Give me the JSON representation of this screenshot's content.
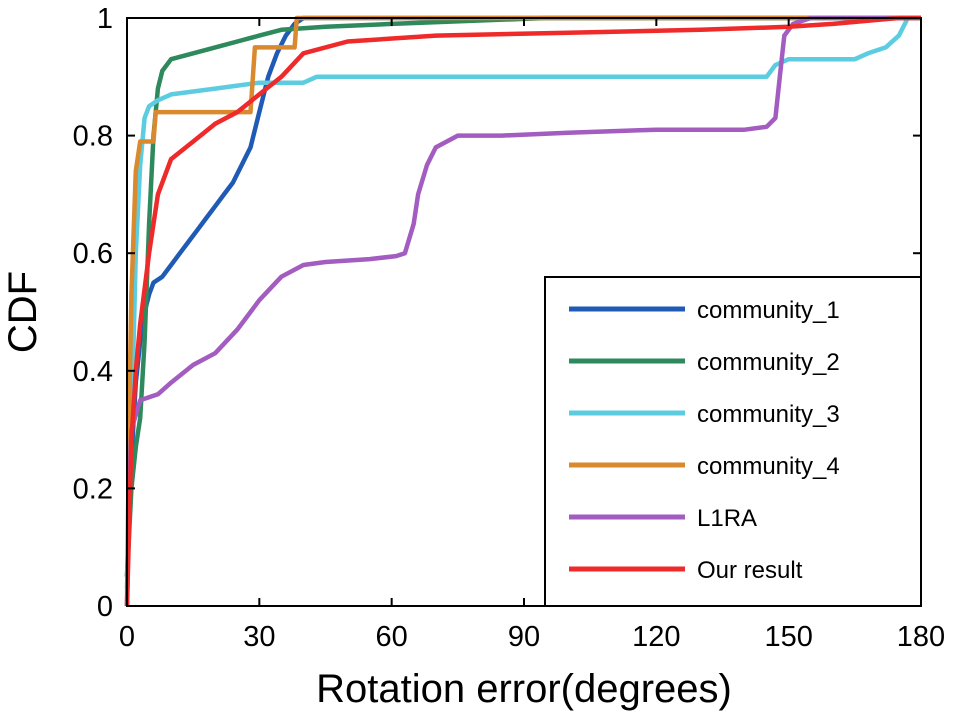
{
  "chart_data": {
    "type": "line",
    "title": "",
    "xlabel": "Rotation error(degrees)",
    "ylabel": "CDF",
    "xlim": [
      0,
      180
    ],
    "ylim": [
      0,
      1
    ],
    "xticks": [
      0,
      30,
      60,
      90,
      120,
      150,
      180
    ],
    "xtick_labels": [
      "0",
      "30",
      "60",
      "90",
      "120",
      "150",
      "180"
    ],
    "yticks": [
      0,
      0.2,
      0.4,
      0.6,
      0.8,
      1
    ],
    "ytick_labels": [
      "0",
      "0.2",
      "0.4",
      "0.6",
      "0.8",
      "1"
    ],
    "grid": false,
    "legend_position": "lower-right",
    "series": [
      {
        "name": "community_1",
        "color": "#1f5bb5",
        "points": [
          [
            0,
            0.05
          ],
          [
            1,
            0.25
          ],
          [
            2,
            0.38
          ],
          [
            3,
            0.45
          ],
          [
            4,
            0.5
          ],
          [
            5,
            0.53
          ],
          [
            6,
            0.55
          ],
          [
            8,
            0.56
          ],
          [
            10,
            0.58
          ],
          [
            12,
            0.6
          ],
          [
            14,
            0.62
          ],
          [
            16,
            0.64
          ],
          [
            18,
            0.66
          ],
          [
            20,
            0.68
          ],
          [
            22,
            0.7
          ],
          [
            24,
            0.72
          ],
          [
            26,
            0.75
          ],
          [
            28,
            0.78
          ],
          [
            30,
            0.84
          ],
          [
            32,
            0.9
          ],
          [
            34,
            0.94
          ],
          [
            36,
            0.97
          ],
          [
            38,
            0.99
          ],
          [
            40,
            1.0
          ],
          [
            180,
            1.0
          ]
        ]
      },
      {
        "name": "community_2",
        "color": "#2e8a5c",
        "points": [
          [
            0,
            0.05
          ],
          [
            1,
            0.2
          ],
          [
            2,
            0.27
          ],
          [
            3,
            0.32
          ],
          [
            4,
            0.45
          ],
          [
            5,
            0.65
          ],
          [
            6,
            0.8
          ],
          [
            7,
            0.88
          ],
          [
            8,
            0.91
          ],
          [
            10,
            0.93
          ],
          [
            15,
            0.94
          ],
          [
            20,
            0.95
          ],
          [
            25,
            0.96
          ],
          [
            30,
            0.97
          ],
          [
            35,
            0.98
          ],
          [
            45,
            0.985
          ],
          [
            60,
            0.99
          ],
          [
            95,
            1.0
          ],
          [
            180,
            1.0
          ]
        ]
      },
      {
        "name": "community_3",
        "color": "#5ccde0",
        "points": [
          [
            0,
            0.03
          ],
          [
            1,
            0.3
          ],
          [
            2,
            0.6
          ],
          [
            3,
            0.75
          ],
          [
            4,
            0.83
          ],
          [
            5,
            0.85
          ],
          [
            7,
            0.86
          ],
          [
            10,
            0.87
          ],
          [
            20,
            0.88
          ],
          [
            30,
            0.89
          ],
          [
            40,
            0.89
          ],
          [
            43,
            0.9
          ],
          [
            145,
            0.9
          ],
          [
            147,
            0.92
          ],
          [
            150,
            0.93
          ],
          [
            165,
            0.93
          ],
          [
            168,
            0.94
          ],
          [
            172,
            0.95
          ],
          [
            175,
            0.97
          ],
          [
            177,
            1.0
          ],
          [
            180,
            1.0
          ]
        ]
      },
      {
        "name": "community_4",
        "color": "#d98a2e",
        "points": [
          [
            0,
            0.0
          ],
          [
            0.5,
            0.33
          ],
          [
            1,
            0.53
          ],
          [
            2,
            0.74
          ],
          [
            3,
            0.79
          ],
          [
            6,
            0.79
          ],
          [
            6.5,
            0.84
          ],
          [
            14,
            0.84
          ],
          [
            28,
            0.84
          ],
          [
            29,
            0.95
          ],
          [
            38,
            0.95
          ],
          [
            38.5,
            1.0
          ],
          [
            180,
            1.0
          ]
        ]
      },
      {
        "name": "L1RA",
        "color": "#a35cc0",
        "points": [
          [
            0,
            0.0
          ],
          [
            0.5,
            0.2
          ],
          [
            1,
            0.3
          ],
          [
            3,
            0.35
          ],
          [
            7,
            0.36
          ],
          [
            10,
            0.38
          ],
          [
            15,
            0.41
          ],
          [
            20,
            0.43
          ],
          [
            25,
            0.47
          ],
          [
            30,
            0.52
          ],
          [
            35,
            0.56
          ],
          [
            40,
            0.58
          ],
          [
            45,
            0.585
          ],
          [
            55,
            0.59
          ],
          [
            61,
            0.595
          ],
          [
            63,
            0.6
          ],
          [
            65,
            0.65
          ],
          [
            66,
            0.7
          ],
          [
            68,
            0.75
          ],
          [
            70,
            0.78
          ],
          [
            75,
            0.8
          ],
          [
            85,
            0.8
          ],
          [
            100,
            0.805
          ],
          [
            120,
            0.81
          ],
          [
            140,
            0.81
          ],
          [
            145,
            0.815
          ],
          [
            147,
            0.83
          ],
          [
            148,
            0.9
          ],
          [
            149,
            0.97
          ],
          [
            151,
            0.99
          ],
          [
            155,
            1.0
          ],
          [
            180,
            1.0
          ]
        ]
      },
      {
        "name": "Our result",
        "color": "#ee2a2a",
        "points": [
          [
            0,
            0.0
          ],
          [
            1,
            0.28
          ],
          [
            2,
            0.4
          ],
          [
            3,
            0.48
          ],
          [
            5,
            0.6
          ],
          [
            7,
            0.7
          ],
          [
            10,
            0.76
          ],
          [
            15,
            0.79
          ],
          [
            20,
            0.82
          ],
          [
            25,
            0.84
          ],
          [
            30,
            0.87
          ],
          [
            35,
            0.9
          ],
          [
            40,
            0.94
          ],
          [
            50,
            0.96
          ],
          [
            70,
            0.97
          ],
          [
            100,
            0.975
          ],
          [
            130,
            0.98
          ],
          [
            150,
            0.985
          ],
          [
            160,
            0.99
          ],
          [
            175,
            1.0
          ],
          [
            180,
            1.0
          ]
        ]
      }
    ]
  }
}
